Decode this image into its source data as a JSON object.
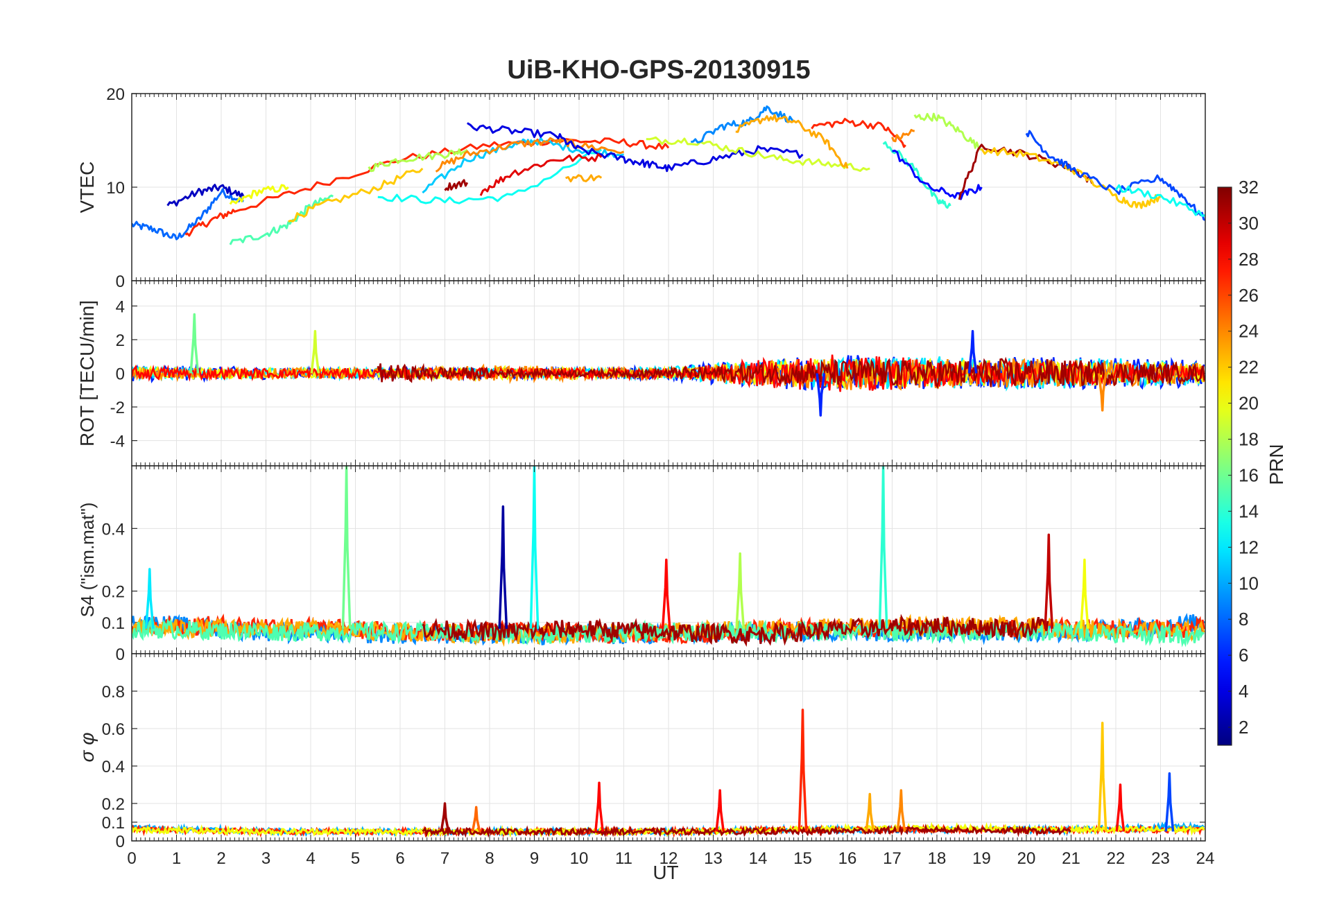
{
  "figure": {
    "title": "UiB-KHO-GPS-20130915",
    "xlabel": "UT",
    "x_ticks": [
      "0",
      "1",
      "2",
      "3",
      "4",
      "5",
      "6",
      "7",
      "8",
      "9",
      "10",
      "11",
      "12",
      "13",
      "14",
      "15",
      "16",
      "17",
      "18",
      "19",
      "20",
      "21",
      "22",
      "23",
      "24"
    ]
  },
  "colorbar": {
    "label": "PRN",
    "range": [
      1,
      32
    ],
    "ticks": [
      "2",
      "4",
      "6",
      "8",
      "10",
      "12",
      "14",
      "16",
      "18",
      "20",
      "22",
      "24",
      "26",
      "28",
      "30",
      "32"
    ],
    "colormap": "jet"
  },
  "chart_data": [
    {
      "type": "line",
      "panel": "vtec",
      "ylabel": "VTEC",
      "ylim": [
        0,
        20
      ],
      "xlim": [
        0,
        24
      ],
      "y_ticks": [
        "0",
        "10",
        "20"
      ],
      "grid": true,
      "color_by": "PRN",
      "series": [
        {
          "prn": 8,
          "x": [
            0,
            0.5,
            1,
            1.5,
            2,
            2.5
          ],
          "y": [
            6,
            5.5,
            4.5,
            6.5,
            9.5,
            8.5
          ]
        },
        {
          "prn": 3,
          "x": [
            0.8,
            1.5,
            2,
            2.5
          ],
          "y": [
            8,
            9.5,
            10,
            9
          ]
        },
        {
          "prn": 27,
          "x": [
            1.2,
            1.8,
            2.3,
            4,
            6,
            8,
            9.5,
            11,
            12
          ],
          "y": [
            5,
            6.5,
            7.5,
            10,
            13,
            14.5,
            15,
            14.8,
            14.2
          ]
        },
        {
          "prn": 20,
          "x": [
            2.2,
            2.8,
            3.5
          ],
          "y": [
            8,
            9.5,
            10
          ]
        },
        {
          "prn": 15,
          "x": [
            2.2,
            3,
            3.5,
            4,
            4.5
          ],
          "y": [
            4,
            5,
            6,
            8,
            9
          ]
        },
        {
          "prn": 22,
          "x": [
            3.5,
            4.2,
            5.5,
            6.5
          ],
          "y": [
            6.5,
            8,
            10,
            12
          ]
        },
        {
          "prn": 18,
          "x": [
            5.3,
            6,
            7,
            7.5
          ],
          "y": [
            12,
            13,
            13.5,
            14
          ]
        },
        {
          "prn": 13,
          "x": [
            5.5,
            7,
            8.5,
            10.5
          ],
          "y": [
            9,
            8.5,
            9,
            14
          ]
        },
        {
          "prn": 11,
          "x": [
            6.5,
            7.5,
            8.5,
            9,
            10,
            11
          ],
          "y": [
            9.5,
            13,
            14.5,
            15,
            14,
            13.5
          ]
        },
        {
          "prn": 24,
          "x": [
            6.8,
            7.5,
            8.5,
            9.5,
            10,
            11
          ],
          "y": [
            12,
            13.5,
            14.5,
            15,
            14.5,
            13.8
          ]
        },
        {
          "prn": 4,
          "x": [
            7.5,
            8.5,
            9.5,
            10,
            11,
            11.5,
            12,
            13,
            14,
            15
          ],
          "y": [
            16.5,
            16,
            15.5,
            14,
            13,
            12.5,
            12,
            13,
            14,
            13.5
          ]
        },
        {
          "prn": 29,
          "x": [
            7.8,
            8.5,
            9.5,
            10.5
          ],
          "y": [
            9.5,
            11.5,
            13,
            13.2
          ]
        },
        {
          "prn": 31,
          "x": [
            7,
            7.5
          ],
          "y": [
            10,
            10.5
          ]
        },
        {
          "prn": 23,
          "x": [
            9.7,
            10.5
          ],
          "y": [
            11,
            11
          ]
        },
        {
          "prn": 19,
          "x": [
            11.5,
            12.5,
            13.5,
            14.5,
            15.5,
            16.5
          ],
          "y": [
            15,
            15,
            14,
            13,
            12.5,
            12
          ]
        },
        {
          "prn": 9,
          "x": [
            12.5,
            13.2,
            13.8,
            14.2,
            14.8
          ],
          "y": [
            14.5,
            16.5,
            17,
            18.5,
            17
          ]
        },
        {
          "prn": 23,
          "x": [
            13.5,
            14.2,
            14.8,
            15.5,
            16
          ],
          "y": [
            16,
            17.5,
            17,
            15,
            12
          ]
        },
        {
          "prn": 27,
          "x": [
            15.2,
            16,
            16.8,
            17.3
          ],
          "y": [
            16.5,
            17,
            16.5,
            14.5
          ]
        },
        {
          "prn": 24,
          "x": [
            17,
            17.5
          ],
          "y": [
            15,
            16
          ]
        },
        {
          "prn": 18,
          "x": [
            17.5,
            18,
            18.5,
            19
          ],
          "y": [
            17.5,
            17.5,
            16,
            14
          ]
        },
        {
          "prn": 14,
          "x": [
            16.8,
            17.5,
            18,
            18.3
          ],
          "y": [
            15,
            12,
            8.5,
            8
          ]
        },
        {
          "prn": 5,
          "x": [
            17,
            17.8,
            18.5,
            19
          ],
          "y": [
            14,
            10,
            9,
            10
          ]
        },
        {
          "prn": 31,
          "x": [
            18.5,
            19,
            20,
            21,
            21.5
          ],
          "y": [
            9,
            14.5,
            13.5,
            12,
            10.5
          ]
        },
        {
          "prn": 22,
          "x": [
            19,
            20,
            21,
            22,
            22.5,
            23
          ],
          "y": [
            14,
            13.5,
            12,
            9,
            8,
            9
          ]
        },
        {
          "prn": 7,
          "x": [
            20,
            20.5,
            21,
            22,
            23,
            23.5,
            24
          ],
          "y": [
            16,
            13.5,
            12,
            9.5,
            11,
            9,
            6.5
          ]
        },
        {
          "prn": 13,
          "x": [
            22,
            23,
            24
          ],
          "y": [
            10,
            9,
            7
          ]
        }
      ]
    },
    {
      "type": "line",
      "panel": "rot",
      "ylabel": "ROT [TECU/min]",
      "ylim": [
        -5.5,
        5.5
      ],
      "xlim": [
        0,
        24
      ],
      "y_ticks": [
        "-4",
        "-2",
        "0",
        "2",
        "4"
      ],
      "grid": true,
      "color_by": "PRN",
      "noise_bands": [
        {
          "prn": 6,
          "x": [
            0,
            2,
            4,
            6,
            8,
            10,
            12,
            14,
            16,
            18,
            20,
            22,
            24
          ],
          "amplitude": [
            0.5,
            0.4,
            0.3,
            0.3,
            0.3,
            0.3,
            0.4,
            0.9,
            1.1,
            0.9,
            1,
            0.9,
            0.8
          ]
        },
        {
          "prn": 12,
          "x": [
            0,
            2,
            4,
            6,
            8,
            10,
            12,
            14,
            16,
            18,
            20,
            22,
            24
          ],
          "amplitude": [
            0.4,
            0.3,
            0.3,
            0.3,
            0.3,
            0.3,
            0.4,
            0.8,
            0.9,
            1,
            0.9,
            0.9,
            0.7
          ]
        },
        {
          "prn": 20,
          "x": [
            0,
            2,
            4,
            6,
            8,
            10,
            12,
            14,
            16,
            18,
            20,
            22,
            24
          ],
          "amplitude": [
            0.4,
            0.3,
            0.3,
            0.3,
            0.4,
            0.3,
            0.3,
            0.7,
            0.9,
            0.8,
            0.8,
            0.7,
            0.6
          ]
        },
        {
          "prn": 24,
          "x": [
            0,
            2,
            4,
            6,
            8,
            10,
            12,
            14,
            16,
            18,
            20,
            22,
            24
          ],
          "amplitude": [
            0.4,
            0.3,
            0.3,
            0.3,
            0.5,
            0.4,
            0.3,
            0.7,
            1,
            0.9,
            0.9,
            0.8,
            0.6
          ]
        },
        {
          "prn": 28,
          "x": [
            0,
            2,
            4,
            6,
            8,
            10,
            12,
            14,
            16,
            18,
            20,
            22,
            24
          ],
          "amplitude": [
            0.4,
            0.3,
            0.3,
            0.3,
            0.3,
            0.3,
            0.3,
            0.8,
            1.2,
            0.8,
            0.7,
            0.6,
            0.4
          ]
        },
        {
          "prn": 31,
          "x": [
            5.5,
            6,
            7,
            8,
            9,
            10,
            11,
            16,
            18,
            20,
            22,
            24
          ],
          "amplitude": [
            0.6,
            0.5,
            0.4,
            0.3,
            0.2,
            0.2,
            0.2,
            0.8,
            0.8,
            0.9,
            0.7,
            0.5
          ]
        }
      ],
      "spikes": [
        {
          "prn": 16,
          "x": 1.4,
          "y": 3.5
        },
        {
          "prn": 19,
          "x": 4.1,
          "y": 2.5
        },
        {
          "prn": 6,
          "x": 18.8,
          "y": 2.5
        },
        {
          "prn": 6,
          "x": 15.4,
          "y": -2.5
        },
        {
          "prn": 24,
          "x": 21.7,
          "y": -2.2
        }
      ]
    },
    {
      "type": "line",
      "panel": "s4",
      "ylabel": "S4 (\"ism.mat\")",
      "ylim": [
        0,
        0.6
      ],
      "xlim": [
        0,
        24
      ],
      "y_ticks": [
        "0",
        "0.1",
        "0.2",
        "0.4"
      ],
      "grid": true,
      "color_by": "PRN",
      "baseline_bands": [
        {
          "prn": 9,
          "x": [
            0,
            3,
            6,
            9,
            12,
            15,
            18,
            21,
            24
          ],
          "level": [
            0.1,
            0.07,
            0.06,
            0.06,
            0.06,
            0.07,
            0.07,
            0.07,
            0.1
          ]
        },
        {
          "prn": 27,
          "x": [
            0,
            3,
            6,
            9,
            12,
            15,
            18,
            21,
            24
          ],
          "level": [
            0.09,
            0.09,
            0.07,
            0.07,
            0.06,
            0.08,
            0.08,
            0.08,
            0.08
          ]
        },
        {
          "prn": 23,
          "x": [
            0,
            3,
            6,
            9,
            12,
            15,
            18,
            21,
            24
          ],
          "level": [
            0.08,
            0.08,
            0.07,
            0.06,
            0.07,
            0.08,
            0.09,
            0.08,
            0.07
          ]
        },
        {
          "prn": 15,
          "x": [
            0,
            3,
            6,
            9,
            12,
            15,
            18,
            21,
            24
          ],
          "level": [
            0.08,
            0.07,
            0.07,
            0.06,
            0.07,
            0.07,
            0.07,
            0.07,
            0.06
          ]
        },
        {
          "prn": 31,
          "x": [
            6.5,
            8,
            10,
            12,
            14,
            16,
            18,
            20,
            20.5
          ],
          "level": [
            0.08,
            0.07,
            0.08,
            0.07,
            0.06,
            0.08,
            0.09,
            0.08,
            0.1
          ]
        }
      ],
      "spikes": [
        {
          "prn": 12,
          "x": 0.4,
          "y": 0.27
        },
        {
          "prn": 16,
          "x": 4.8,
          "y": 0.6
        },
        {
          "prn": 2,
          "x": 8.3,
          "y": 0.47
        },
        {
          "prn": 13,
          "x": 9.0,
          "y": 0.6
        },
        {
          "prn": 28,
          "x": 11.95,
          "y": 0.3
        },
        {
          "prn": 18,
          "x": 13.6,
          "y": 0.32
        },
        {
          "prn": 14,
          "x": 16.8,
          "y": 0.6
        },
        {
          "prn": 30,
          "x": 20.5,
          "y": 0.38
        },
        {
          "prn": 20,
          "x": 21.3,
          "y": 0.3
        }
      ]
    },
    {
      "type": "line",
      "panel": "sigma_phi",
      "ylabel": "σ φ",
      "ylim": [
        0,
        1
      ],
      "xlim": [
        0,
        24
      ],
      "y_ticks": [
        "0",
        "0.1",
        "0.2",
        "0.4",
        "0.6",
        "0.8"
      ],
      "grid": true,
      "color_by": "PRN",
      "baseline_bands": [
        {
          "prn": 10,
          "x": [
            0,
            3,
            6,
            9,
            12,
            15,
            18,
            21,
            24
          ],
          "level": [
            0.07,
            0.05,
            0.05,
            0.05,
            0.05,
            0.06,
            0.06,
            0.06,
            0.08
          ]
        },
        {
          "prn": 27,
          "x": [
            0,
            3,
            6,
            9,
            12,
            15,
            18,
            21,
            24
          ],
          "level": [
            0.06,
            0.05,
            0.05,
            0.05,
            0.05,
            0.06,
            0.06,
            0.06,
            0.06
          ]
        },
        {
          "prn": 20,
          "x": [
            0,
            3,
            6,
            9,
            12,
            15,
            18,
            21,
            24
          ],
          "level": [
            0.06,
            0.05,
            0.05,
            0.05,
            0.05,
            0.06,
            0.07,
            0.06,
            0.06
          ]
        },
        {
          "prn": 31,
          "x": [
            6.5,
            9,
            12,
            15,
            18,
            21
          ],
          "level": [
            0.05,
            0.05,
            0.05,
            0.05,
            0.06,
            0.05
          ]
        }
      ],
      "spikes": [
        {
          "prn": 31,
          "x": 7.0,
          "y": 0.2
        },
        {
          "prn": 25,
          "x": 7.7,
          "y": 0.18
        },
        {
          "prn": 28,
          "x": 10.45,
          "y": 0.31
        },
        {
          "prn": 28,
          "x": 13.15,
          "y": 0.27
        },
        {
          "prn": 27,
          "x": 15.0,
          "y": 0.7
        },
        {
          "prn": 23,
          "x": 16.5,
          "y": 0.25
        },
        {
          "prn": 24,
          "x": 17.2,
          "y": 0.27
        },
        {
          "prn": 22,
          "x": 21.7,
          "y": 0.63
        },
        {
          "prn": 28,
          "x": 22.1,
          "y": 0.3
        },
        {
          "prn": 7,
          "x": 23.2,
          "y": 0.36
        }
      ]
    }
  ]
}
